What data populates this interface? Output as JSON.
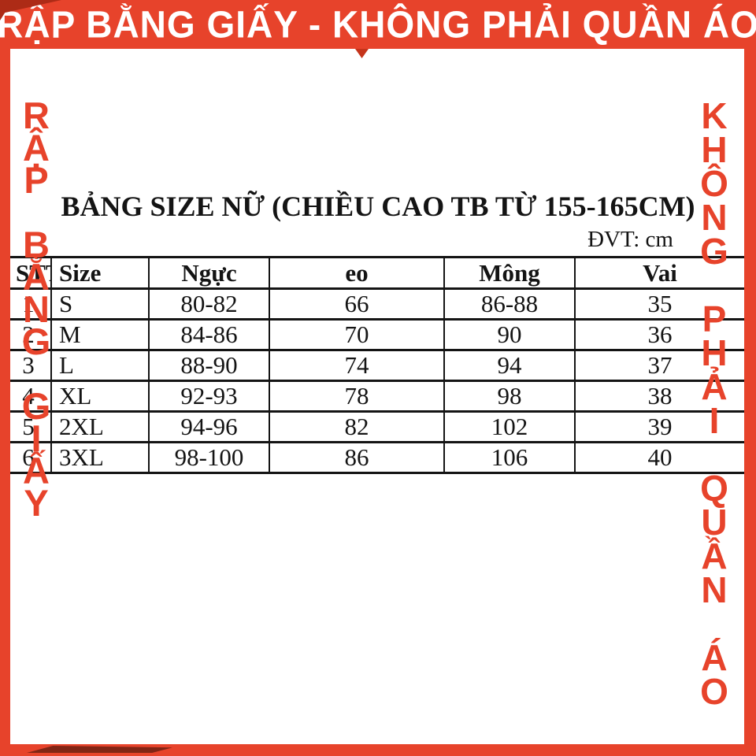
{
  "banner": {
    "text": "RẬP BẰNG GIẤY - KHÔNG PHẢI QUẦN ÁO"
  },
  "side_texts": {
    "left": "RẬP BẰNG GIẤY",
    "right": "KHÔNG PHẢI QUẦN ÁO"
  },
  "content": {
    "title": "BẢNG SIZE NỮ (CHIỀU CAO TB TỪ 155-165CM)",
    "unit_label": "ĐVT: cm"
  },
  "size_table": {
    "headers": [
      "STT",
      "Size",
      "Ngực",
      "eo",
      "Mông",
      "Vai"
    ],
    "rows": [
      [
        "1",
        "S",
        "80-82",
        "66",
        "86-88",
        "35"
      ],
      [
        "2",
        "M",
        "84-86",
        "70",
        "90",
        "36"
      ],
      [
        "3",
        "L",
        "88-90",
        "74",
        "94",
        "37"
      ],
      [
        "4",
        "XL",
        "92-93",
        "78",
        "98",
        "38"
      ],
      [
        "5",
        "2XL",
        "94-96",
        "82",
        "102",
        "39"
      ],
      [
        "6",
        "3XL",
        "98-100",
        "86",
        "106",
        "40"
      ]
    ]
  },
  "chart_data": {
    "type": "table",
    "title": "BẢNG SIZE NỮ (CHIỀU CAO TB TỪ 155-165CM)",
    "unit": "cm",
    "columns": [
      "STT",
      "Size",
      "Ngực",
      "eo",
      "Mông",
      "Vai"
    ],
    "rows": [
      [
        "1",
        "S",
        "80-82",
        "66",
        "86-88",
        "35"
      ],
      [
        "2",
        "M",
        "84-86",
        "70",
        "90",
        "36"
      ],
      [
        "3",
        "L",
        "88-90",
        "74",
        "94",
        "37"
      ],
      [
        "4",
        "XL",
        "92-93",
        "78",
        "98",
        "38"
      ],
      [
        "5",
        "2XL",
        "94-96",
        "82",
        "102",
        "39"
      ],
      [
        "6",
        "3XL",
        "98-100",
        "86",
        "106",
        "40"
      ]
    ],
    "notes": "Women's size chart for average height 155-165 cm; measurements: bust (Ngực), waist (eo), hip (Mông), shoulder (Vai), all in cm"
  },
  "colors": {
    "accent": "#E7432B",
    "accent_dark": "#AD2B16",
    "table_border": "#141414",
    "banner_text": "#FFFFFF"
  }
}
